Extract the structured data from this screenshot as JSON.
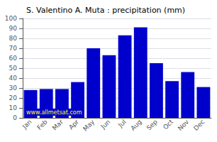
{
  "chart_data": {
    "type": "bar",
    "title": "S. Valentino A. Muta : precipitation (mm)",
    "categories": [
      "Jan",
      "Feb",
      "Mar",
      "Apr",
      "May",
      "Jun",
      "Jul",
      "Aug",
      "Sep",
      "Oct",
      "Nov",
      "Dec"
    ],
    "values": [
      28,
      29,
      29,
      36,
      70,
      63,
      83,
      91,
      55,
      37,
      46,
      31
    ],
    "color": "#0000cc",
    "ylim": [
      0,
      100
    ],
    "yticks": [
      0,
      10,
      20,
      30,
      40,
      50,
      60,
      70,
      80,
      90,
      100
    ],
    "grid": true,
    "annotation": "www.allmetsat.com"
  }
}
